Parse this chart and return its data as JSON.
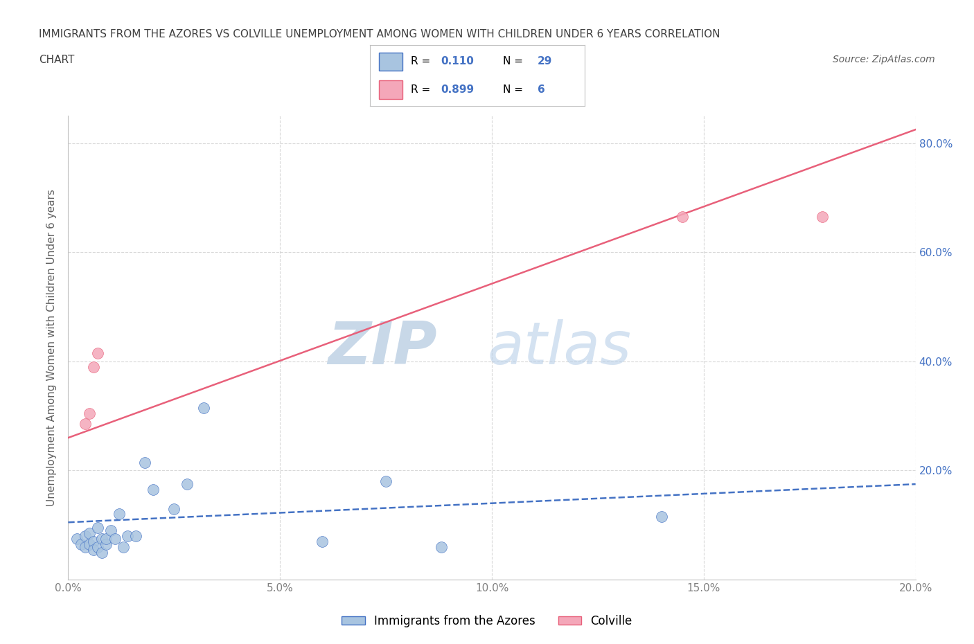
{
  "title_line1": "IMMIGRANTS FROM THE AZORES VS COLVILLE UNEMPLOYMENT AMONG WOMEN WITH CHILDREN UNDER 6 YEARS CORRELATION",
  "title_line2": "CHART",
  "source_text": "Source: ZipAtlas.com",
  "ylabel": "Unemployment Among Women with Children Under 6 years",
  "xlim": [
    0.0,
    0.2
  ],
  "ylim": [
    0.0,
    0.85
  ],
  "x_tick_labels": [
    "0.0%",
    "5.0%",
    "10.0%",
    "15.0%",
    "20.0%"
  ],
  "x_tick_values": [
    0.0,
    0.05,
    0.1,
    0.15,
    0.2
  ],
  "y_tick_labels": [
    "20.0%",
    "40.0%",
    "60.0%",
    "80.0%"
  ],
  "y_tick_values": [
    0.2,
    0.4,
    0.6,
    0.8
  ],
  "watermark_zip": "ZIP",
  "watermark_atlas": "atlas",
  "blue_scatter_x": [
    0.002,
    0.003,
    0.004,
    0.004,
    0.005,
    0.005,
    0.006,
    0.006,
    0.007,
    0.007,
    0.008,
    0.008,
    0.009,
    0.009,
    0.01,
    0.011,
    0.012,
    0.013,
    0.014,
    0.016,
    0.018,
    0.02,
    0.025,
    0.028,
    0.032,
    0.06,
    0.075,
    0.088,
    0.14
  ],
  "blue_scatter_y": [
    0.075,
    0.065,
    0.08,
    0.06,
    0.085,
    0.065,
    0.07,
    0.055,
    0.095,
    0.06,
    0.075,
    0.05,
    0.065,
    0.075,
    0.09,
    0.075,
    0.12,
    0.06,
    0.08,
    0.08,
    0.215,
    0.165,
    0.13,
    0.175,
    0.315,
    0.07,
    0.18,
    0.06,
    0.115
  ],
  "pink_scatter_x": [
    0.004,
    0.005,
    0.006,
    0.007,
    0.145,
    0.178
  ],
  "pink_scatter_y": [
    0.285,
    0.305,
    0.39,
    0.415,
    0.665,
    0.665
  ],
  "blue_line_x": [
    0.0,
    0.2
  ],
  "blue_line_y": [
    0.105,
    0.175
  ],
  "pink_line_x": [
    0.0,
    0.2
  ],
  "pink_line_y": [
    0.26,
    0.825
  ],
  "blue_color": "#a8c4e0",
  "blue_line_color": "#4472c4",
  "pink_color": "#f4a7b9",
  "pink_line_color": "#e8607a",
  "r_color": "#4472c4",
  "title_color": "#404040",
  "axis_label_color": "#606060",
  "tick_color": "#808080",
  "grid_color": "#d0d0d0",
  "bg_color": "#ffffff",
  "watermark_color": "#c8d8e8",
  "legend_label1": "Immigrants from the Azores",
  "legend_label2": "Colville"
}
